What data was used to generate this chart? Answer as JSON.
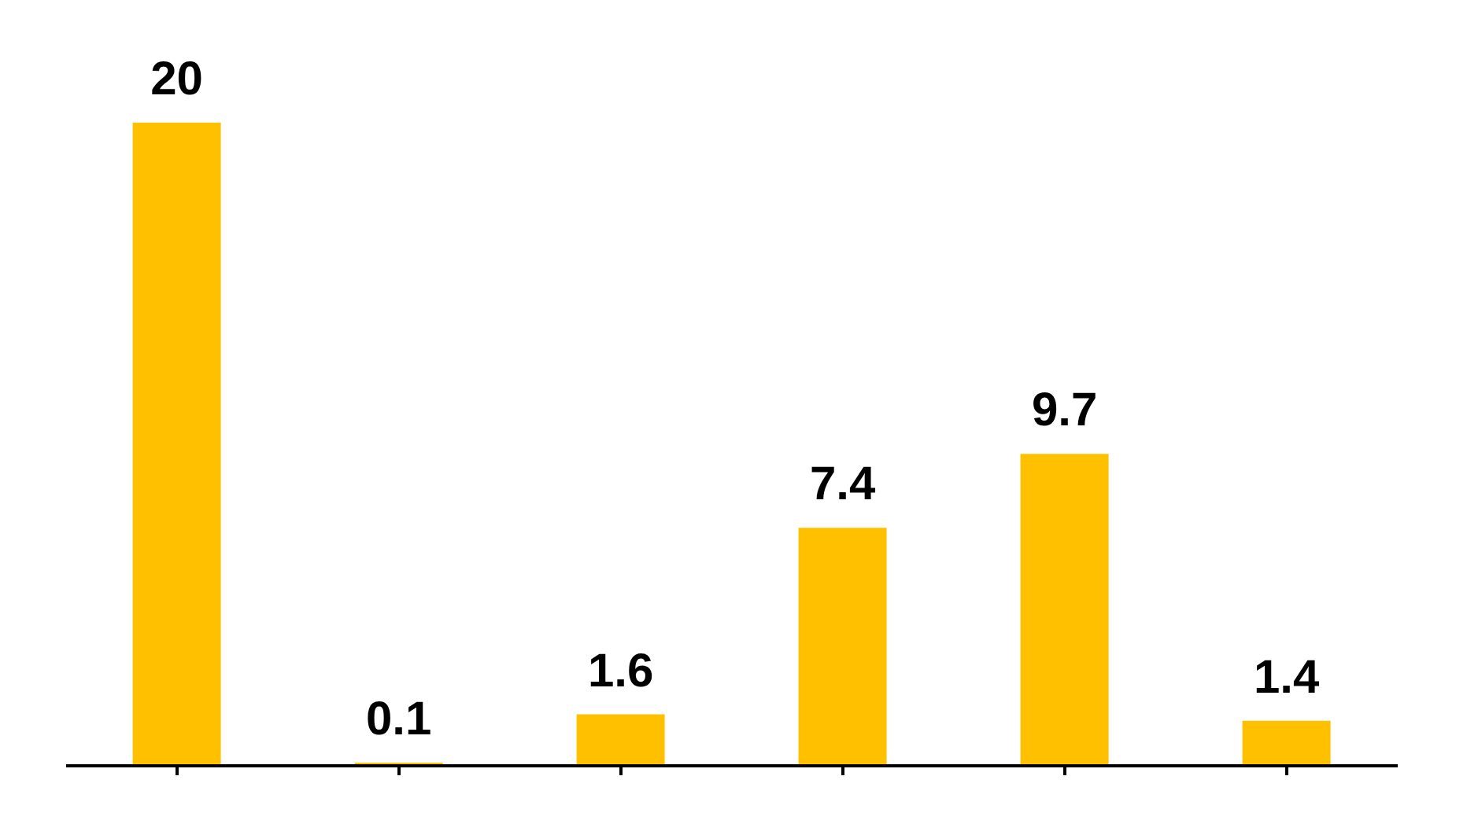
{
  "chart_data": {
    "type": "bar",
    "categories": [
      null,
      null,
      null,
      null,
      null,
      null
    ],
    "values": [
      20,
      0.1,
      1.6,
      7.4,
      9.7,
      1.4
    ],
    "color": "#ffc000",
    "data_labels": true,
    "grid": false
  }
}
